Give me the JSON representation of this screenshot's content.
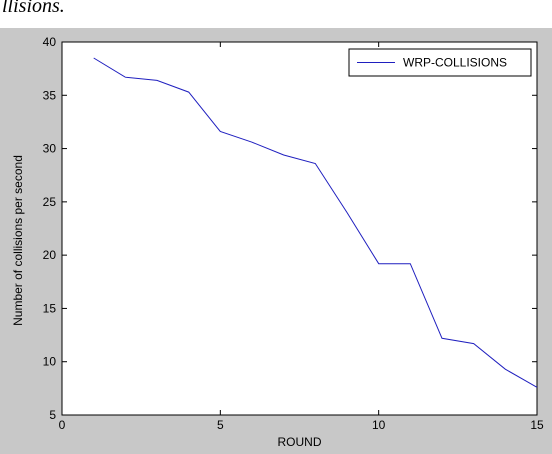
{
  "caption": {
    "text": "llisions."
  },
  "colors": {
    "figure_background": "#c8c8c8",
    "plot_background": "#ffffff",
    "series_line": "#1f1fbf",
    "axis": "#000000"
  },
  "chart_data": {
    "type": "line",
    "title": "",
    "xlabel": "ROUND",
    "ylabel": "Number of collisions per second",
    "xlim": [
      0,
      15
    ],
    "ylim": [
      5,
      40
    ],
    "xticks": [
      0,
      5,
      10,
      15
    ],
    "yticks": [
      5,
      10,
      15,
      20,
      25,
      30,
      35,
      40
    ],
    "grid": false,
    "legend_position": "top-right",
    "series": [
      {
        "name": "WRP-COLLISIONS",
        "x": [
          1,
          2,
          3,
          4,
          5,
          6,
          7,
          8,
          9,
          10,
          11,
          12,
          13,
          14,
          15
        ],
        "y": [
          38.5,
          36.7,
          36.4,
          35.3,
          31.6,
          30.6,
          29.4,
          28.6,
          24,
          19.2,
          19.2,
          12.2,
          11.7,
          9.3,
          7.6
        ]
      }
    ]
  }
}
